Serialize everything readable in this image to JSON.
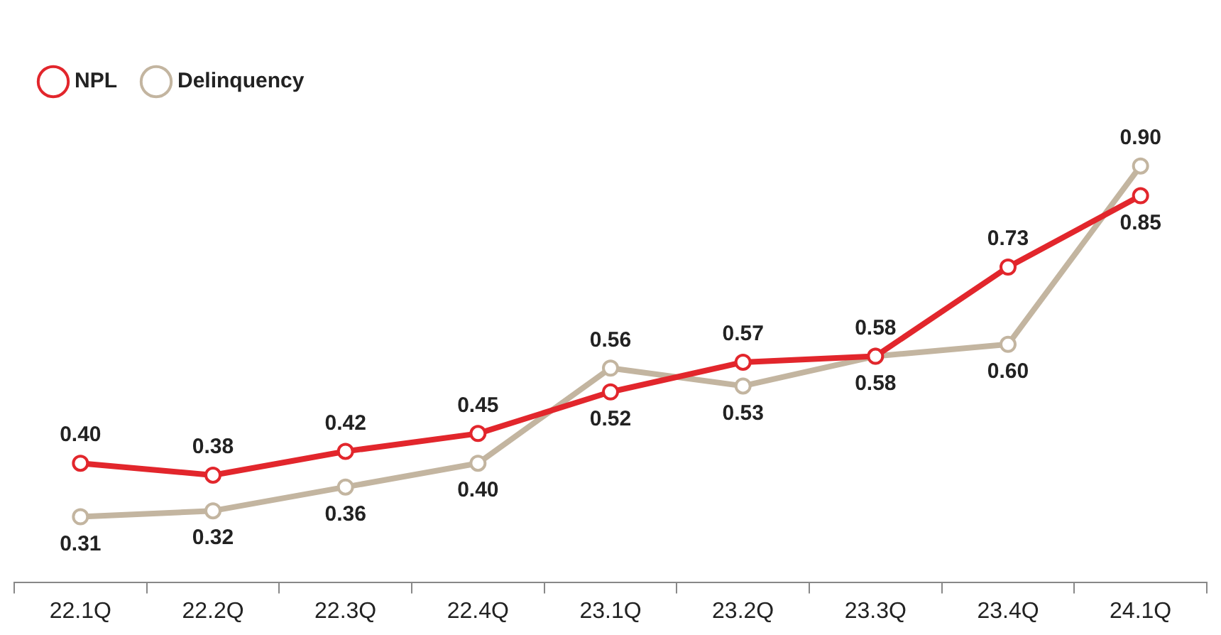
{
  "chart_data": {
    "type": "line",
    "categories": [
      "22.1Q",
      "22.2Q",
      "22.3Q",
      "22.4Q",
      "23.1Q",
      "23.2Q",
      "23.3Q",
      "23.4Q",
      "24.1Q"
    ],
    "series": [
      {
        "name": "NPL",
        "color": "#e2262c",
        "values": [
          0.4,
          0.38,
          0.42,
          0.45,
          0.52,
          0.57,
          0.58,
          0.73,
          0.85
        ],
        "value_labels": [
          "0.40",
          "0.38",
          "0.42",
          "0.45",
          "0.52",
          "0.57",
          "0.58",
          "0.73",
          "0.85"
        ]
      },
      {
        "name": "Delinquency",
        "color": "#c3b5a0",
        "values": [
          0.31,
          0.32,
          0.36,
          0.4,
          0.56,
          0.53,
          0.58,
          0.6,
          0.9
        ],
        "value_labels": [
          "0.31",
          "0.32",
          "0.36",
          "0.40",
          "0.56",
          "0.53",
          "0.58",
          "0.60",
          "0.90"
        ]
      }
    ],
    "legend": "top left",
    "grid": false,
    "marker": "circle",
    "line_style": "solid"
  }
}
